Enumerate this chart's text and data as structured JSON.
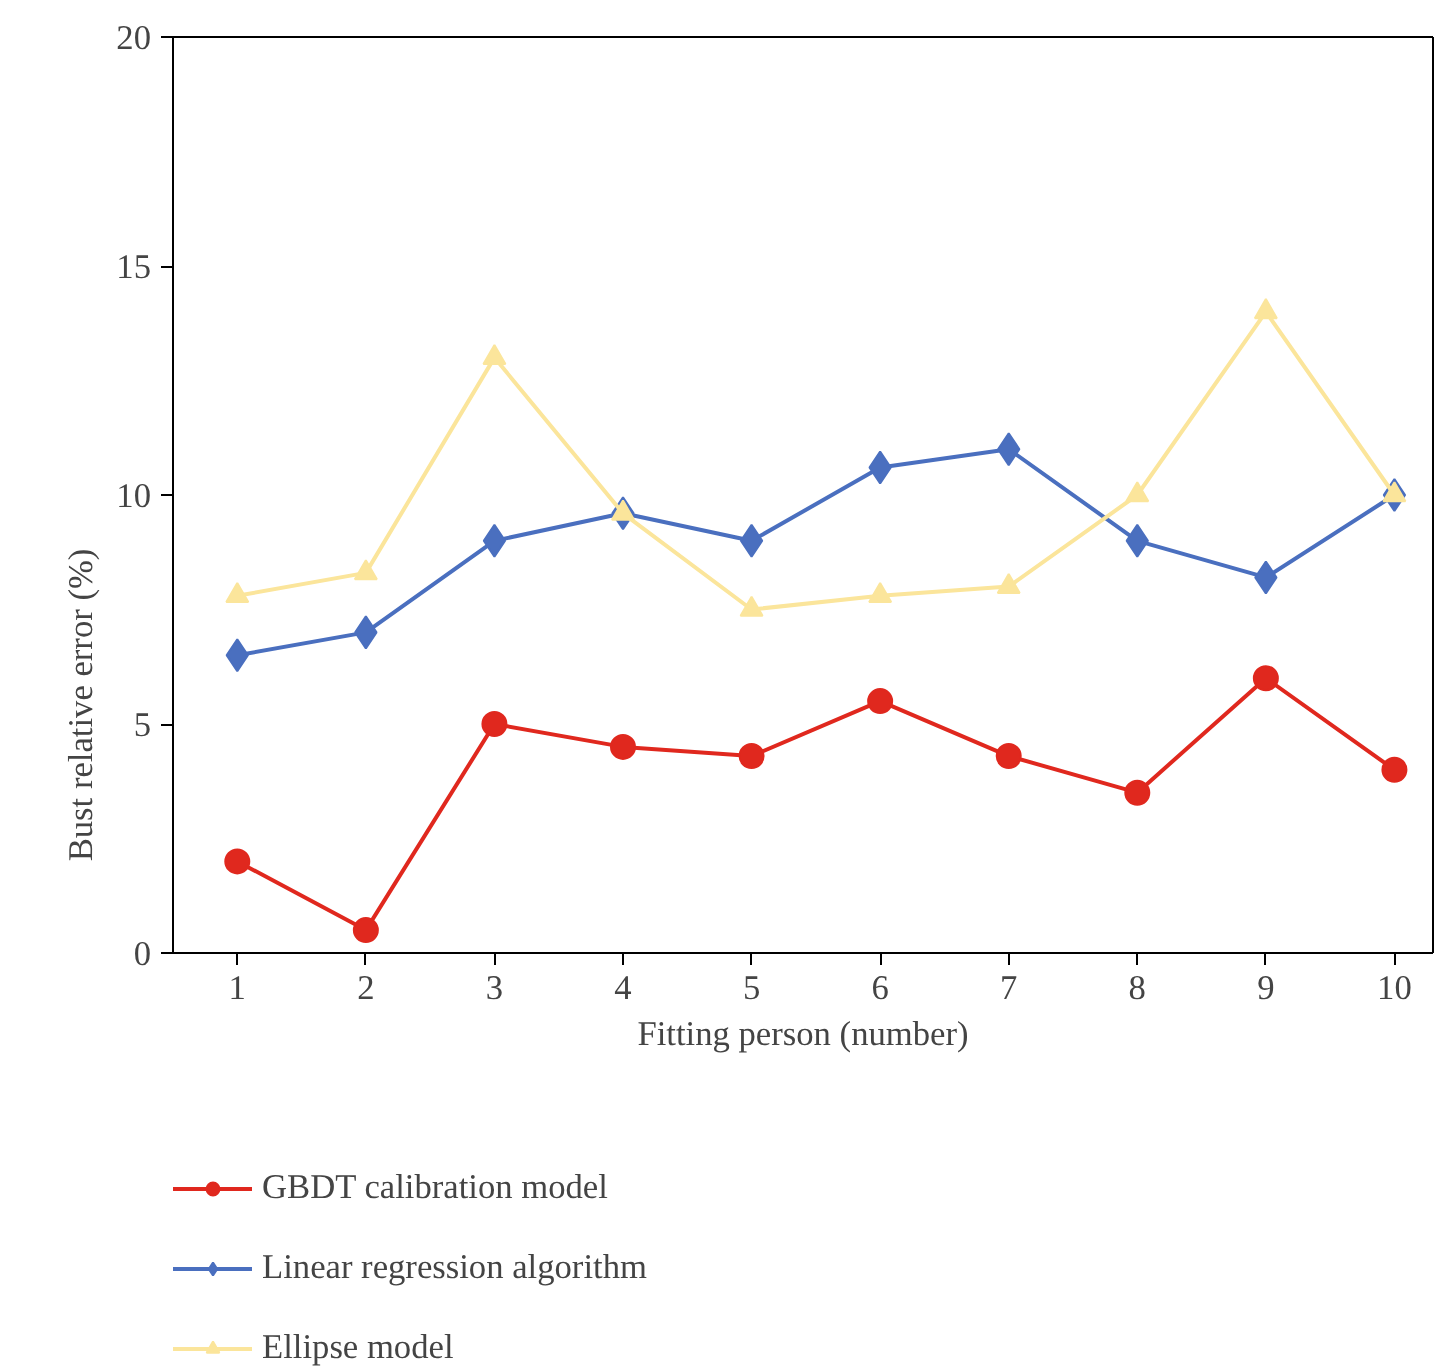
{
  "chart_data": {
    "type": "line",
    "xlabel": "Fitting person (number)",
    "ylabel": "Bust relative error (%)",
    "x": [
      1,
      2,
      3,
      4,
      5,
      6,
      7,
      8,
      9,
      10
    ],
    "xlim": [
      0.5,
      10.3
    ],
    "xticks": [
      1,
      2,
      3,
      4,
      5,
      6,
      7,
      8,
      9,
      10
    ],
    "ylim": [
      0,
      20
    ],
    "yticks": [
      0,
      5,
      10,
      15,
      20
    ],
    "grid": false,
    "legend": "bottom",
    "line_style": "solid",
    "series": [
      {
        "name": "GBDT calibration model",
        "color": "#e0281e",
        "marker": "circle",
        "values": [
          2.0,
          0.5,
          5.0,
          4.5,
          4.3,
          5.5,
          4.3,
          3.5,
          6.0,
          4.0
        ]
      },
      {
        "name": "Linear regression algorithm",
        "color": "#4a6fbf",
        "marker": "diamond",
        "values": [
          6.5,
          7.0,
          9.0,
          9.6,
          9.0,
          10.6,
          11.0,
          9.0,
          8.2,
          10.0
        ]
      },
      {
        "name": "Ellipse model",
        "color": "#fbe59b",
        "marker": "triangle",
        "values": [
          7.8,
          8.3,
          13.0,
          9.6,
          7.5,
          7.8,
          8.0,
          10.0,
          14.0,
          10.0
        ]
      }
    ]
  }
}
